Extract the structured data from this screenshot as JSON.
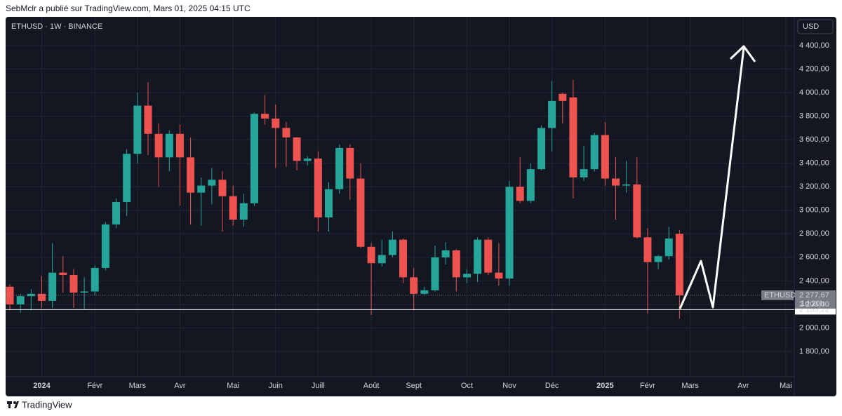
{
  "header": "SebMclr a publié sur TradingView.com, Mars 01, 2025 04:15 UTC",
  "footer": "TradingView",
  "chart_data": {
    "type": "candlestick",
    "title": "ETHUSD · 1W · BINANCE",
    "currency": "USD",
    "up_color": "#26a69a",
    "down_color": "#ef5350",
    "grid": true,
    "open": [
      2350,
      2200,
      2270,
      2290,
      2230,
      2470,
      2450,
      2300,
      2310,
      2510,
      2880,
      3070,
      3480,
      3890,
      3650,
      3450,
      3650,
      3450,
      3150,
      3210,
      3260,
      3120,
      2920,
      3060,
      3820,
      3780,
      3700,
      3620,
      3420,
      3440,
      2940,
      3180,
      3530,
      3270,
      2690,
      2550,
      2620,
      2750,
      2430,
      2290,
      2320,
      2600,
      2660,
      2430,
      2460,
      2750,
      2470,
      2420,
      3200,
      3080,
      3350,
      3700,
      3990,
      3960,
      3280,
      3350,
      3640,
      3270,
      3210,
      3220,
      2770,
      2560,
      2610,
      2800
    ],
    "high": [
      2370,
      2290,
      2330,
      2440,
      2720,
      2610,
      2500,
      2430,
      2530,
      2900,
      3100,
      3520,
      4000,
      4090,
      3740,
      3680,
      3730,
      3620,
      3280,
      3360,
      3330,
      3210,
      3140,
      3830,
      3980,
      3900,
      3750,
      3620,
      3460,
      3500,
      3240,
      3560,
      3560,
      3400,
      2720,
      2750,
      2820,
      2760,
      2510,
      2350,
      2700,
      2730,
      2670,
      2500,
      2770,
      2770,
      2720,
      3250,
      3450,
      3400,
      3720,
      4100,
      4000,
      4110,
      3550,
      3660,
      3750,
      3450,
      3420,
      3450,
      2850,
      2620,
      2860,
      2830
    ],
    "low": [
      2150,
      2130,
      2150,
      2170,
      2170,
      2300,
      2170,
      2160,
      2280,
      2490,
      2850,
      2950,
      3400,
      3470,
      3200,
      3330,
      3040,
      2880,
      2870,
      3050,
      2820,
      2870,
      2860,
      3040,
      3730,
      3360,
      3370,
      3340,
      3380,
      2820,
      2820,
      3140,
      3090,
      2680,
      2110,
      2520,
      2600,
      2380,
      2150,
      2280,
      2310,
      2540,
      2310,
      2380,
      2390,
      2450,
      2360,
      2360,
      3060,
      3060,
      3340,
      3500,
      3740,
      3100,
      3250,
      3330,
      3210,
      2920,
      3150,
      2760,
      2120,
      2500,
      2580,
      2080
    ],
    "close": [
      2200,
      2270,
      2290,
      2230,
      2470,
      2450,
      2300,
      2310,
      2510,
      2880,
      3070,
      3480,
      3890,
      3650,
      3450,
      3650,
      3450,
      3150,
      3210,
      3260,
      3120,
      2920,
      3060,
      3820,
      3780,
      3700,
      3620,
      3420,
      3440,
      2940,
      3180,
      3530,
      3270,
      2690,
      2550,
      2620,
      2750,
      2430,
      2290,
      2320,
      2600,
      2660,
      2430,
      2460,
      2750,
      2470,
      2420,
      3200,
      3080,
      3350,
      3700,
      3930,
      3930,
      3280,
      3350,
      3640,
      3270,
      3210,
      3220,
      2770,
      2560,
      2610,
      2760,
      2277.67
    ],
    "xlim": [
      -0.4,
      73.8
    ],
    "xticks": [
      {
        "value": 3,
        "label": "2024"
      },
      {
        "value": 8,
        "label": "Févr"
      },
      {
        "value": 12,
        "label": "Mars"
      },
      {
        "value": 16,
        "label": "Avr"
      },
      {
        "value": 21,
        "label": "Mai"
      },
      {
        "value": 25,
        "label": "Juin"
      },
      {
        "value": 29,
        "label": "Juill"
      },
      {
        "value": 34,
        "label": "Août"
      },
      {
        "value": 38,
        "label": "Sept"
      },
      {
        "value": 43,
        "label": "Oct"
      },
      {
        "value": 47,
        "label": "Nov"
      },
      {
        "value": 51,
        "label": "Déc"
      },
      {
        "value": 56,
        "label": "2025"
      },
      {
        "value": 60,
        "label": "Févr"
      },
      {
        "value": 64,
        "label": "Mars"
      },
      {
        "value": 69,
        "label": "Avr"
      },
      {
        "value": 73,
        "label": "Mai"
      }
    ],
    "ylim": [
      1585,
      4645
    ],
    "yticks": [
      {
        "value": 1800,
        "label": "1 800,00"
      },
      {
        "value": 2000,
        "label": "2 000,00"
      },
      {
        "value": 2200,
        "label": "2 200,00"
      },
      {
        "value": 2400,
        "label": "2 400,00"
      },
      {
        "value": 2600,
        "label": "2 600,00"
      },
      {
        "value": 2800,
        "label": "2 800,00"
      },
      {
        "value": 3000,
        "label": "3 000,00"
      },
      {
        "value": 3200,
        "label": "3 200,00"
      },
      {
        "value": 3400,
        "label": "3 400,00"
      },
      {
        "value": 3600,
        "label": "3 600,00"
      },
      {
        "value": 3800,
        "label": "3 800,00"
      },
      {
        "value": 4000,
        "label": "4 000,00"
      },
      {
        "value": 4200,
        "label": "4 200,00"
      },
      {
        "value": 4400,
        "label": "4 400,00"
      }
    ],
    "last_price": {
      "name": "ETHUSD",
      "value": 2277.67,
      "label": "2 277,67",
      "countdown": "1d 20h"
    },
    "hline": {
      "value": 2155.22,
      "label": "2 155,22"
    }
  }
}
